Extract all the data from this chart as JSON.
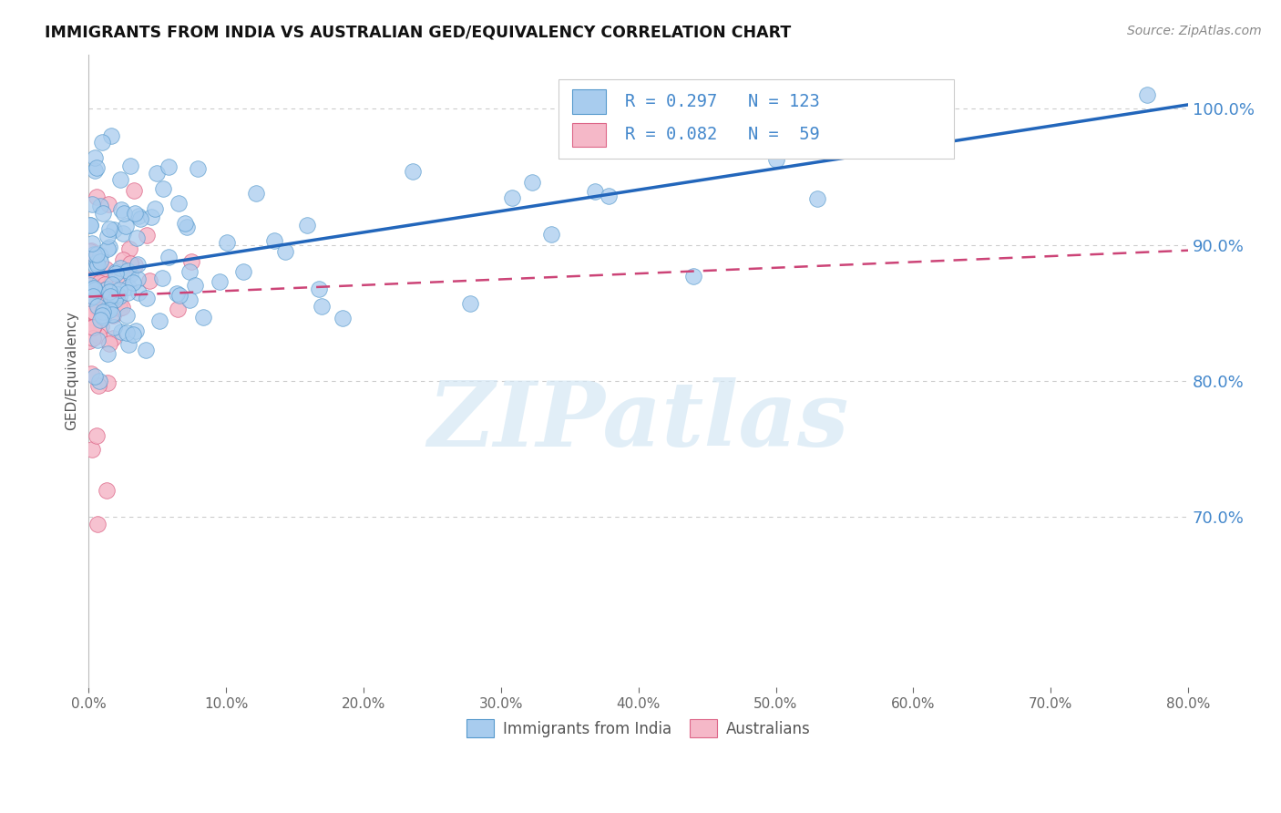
{
  "title": "IMMIGRANTS FROM INDIA VS AUSTRALIAN GED/EQUIVALENCY CORRELATION CHART",
  "source": "Source: ZipAtlas.com",
  "ylabel": "GED/Equivalency",
  "xlim": [
    0.0,
    0.8
  ],
  "ylim": [
    0.575,
    1.04
  ],
  "ytick_values": [
    0.7,
    0.8,
    0.9,
    1.0
  ],
  "xtick_values": [
    0.0,
    0.1,
    0.2,
    0.3,
    0.4,
    0.5,
    0.6,
    0.7,
    0.8
  ],
  "legend_r1": "0.297",
  "legend_n1": "123",
  "legend_r2": "0.082",
  "legend_n2": " 59",
  "color_india_fill": "#A8CCEE",
  "color_india_edge": "#5599CC",
  "color_australia_fill": "#F5B8C8",
  "color_australia_edge": "#DD6688",
  "color_trendline_india": "#2266BB",
  "color_trendline_australia": "#CC4477",
  "color_yticklabels": "#4488CC",
  "color_grid": "#CCCCCC",
  "watermark_text": "ZIPatlas",
  "watermark_color": "#D5E8F5",
  "legend_label1": "Immigrants from India",
  "legend_label2": "Australians",
  "india_trendline_x0": 0.0,
  "india_trendline_y0": 0.878,
  "india_trendline_x1": 0.8,
  "india_trendline_y1": 1.003,
  "aus_trendline_x0": 0.0,
  "aus_trendline_y0": 0.862,
  "aus_trendline_x1": 0.8,
  "aus_trendline_y1": 0.896
}
